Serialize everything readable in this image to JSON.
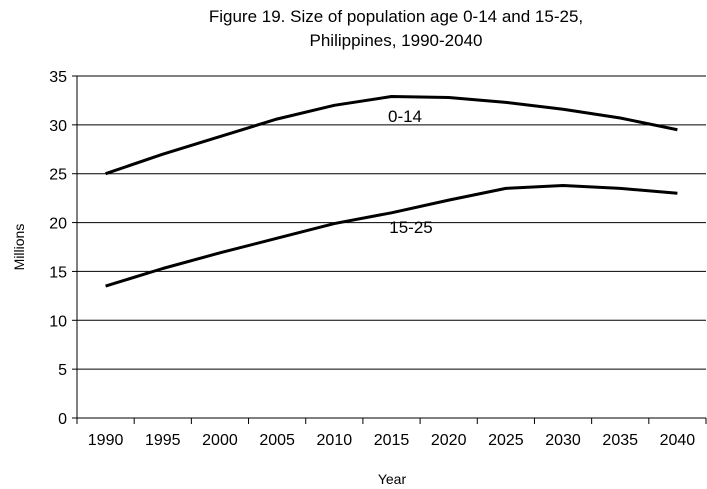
{
  "chart_data": {
    "type": "line",
    "title_lines": [
      "Figure 19. Size of population age 0-14 and 15-25,",
      "Philippines, 1990-2040"
    ],
    "xlabel": "Year",
    "ylabel": "Millions",
    "categories": [
      "1990",
      "1995",
      "2000",
      "2005",
      "2010",
      "2015",
      "2020",
      "2025",
      "2030",
      "2035",
      "2040"
    ],
    "ylim": [
      0,
      35
    ],
    "yticks": [
      0,
      5,
      10,
      15,
      20,
      25,
      30,
      35
    ],
    "grid": "horizontal",
    "legend": "none",
    "series": [
      {
        "name": "0-14",
        "values": [
          25.0,
          27.0,
          28.8,
          30.6,
          32.0,
          32.9,
          32.8,
          32.3,
          31.6,
          30.7,
          29.5
        ],
        "color": "#000000"
      },
      {
        "name": "15-25",
        "values": [
          13.5,
          15.3,
          16.9,
          18.4,
          19.9,
          21.0,
          22.3,
          23.5,
          23.8,
          23.5,
          23.0
        ],
        "color": "#000000"
      }
    ]
  }
}
